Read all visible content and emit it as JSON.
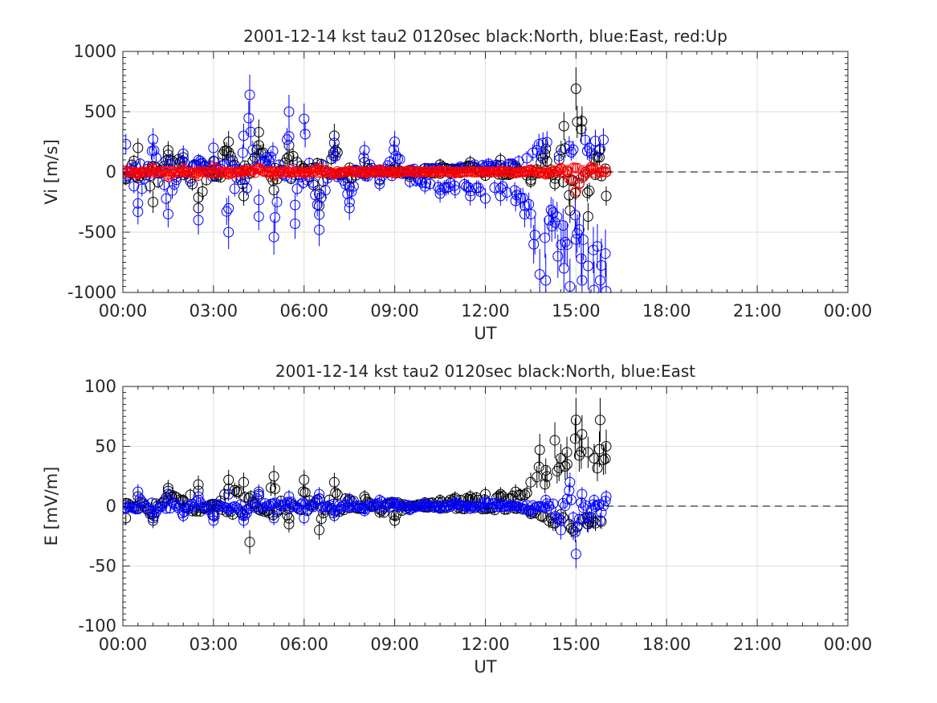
{
  "chart_data": [
    {
      "type": "scatter",
      "title": "2001-12-14 kst tau2 0120sec black:North, blue:East, red:Up",
      "xlabel": "UT",
      "ylabel": "Vi [m/s]",
      "xlim": [
        "00:00",
        "24:00"
      ],
      "ylim": [
        -1000,
        1000
      ],
      "xticks": [
        "00:00",
        "03:00",
        "06:00",
        "09:00",
        "12:00",
        "15:00",
        "18:00",
        "21:00",
        "00:00"
      ],
      "yticks": [
        "-1000",
        "-500",
        "0",
        "500",
        "1000"
      ],
      "grid": true,
      "reference_line": {
        "y": 0,
        "from_hour": 16.0,
        "to_hour": 24.0,
        "style": "dashed"
      },
      "marker": "open-circle-with-errorbar",
      "series": [
        {
          "name": "North",
          "color": "#000000",
          "x_hours": [
            0.1,
            0.5,
            1.0,
            1.5,
            2.0,
            2.5,
            3.0,
            3.5,
            4.0,
            4.5,
            5.0,
            5.5,
            6.0,
            6.5,
            7.0,
            7.5,
            8.0,
            8.5,
            9.0,
            9.5,
            10.0,
            10.5,
            11.0,
            11.5,
            12.0,
            12.5,
            13.0,
            13.5,
            14.0,
            14.3,
            14.6,
            14.8,
            15.0,
            15.2,
            15.4,
            15.6,
            15.8,
            16.0
          ],
          "y": [
            -60,
            200,
            -250,
            180,
            120,
            -300,
            90,
            250,
            -200,
            330,
            -150,
            220,
            30,
            -280,
            300,
            -120,
            80,
            -60,
            40,
            -40,
            30,
            60,
            20,
            80,
            -30,
            100,
            50,
            -80,
            190,
            -100,
            380,
            -320,
            690,
            420,
            -370,
            110,
            190,
            -200
          ]
        },
        {
          "name": "East",
          "color": "#0000ff",
          "x_hours": [
            0.1,
            0.5,
            1.0,
            1.5,
            2.0,
            2.5,
            3.0,
            3.5,
            4.0,
            4.2,
            4.5,
            5.0,
            5.5,
            5.7,
            6.0,
            6.5,
            7.0,
            7.5,
            8.0,
            8.5,
            9.0,
            9.5,
            10.0,
            10.5,
            11.0,
            11.5,
            12.0,
            12.5,
            13.0,
            13.3,
            13.6,
            13.8,
            14.0,
            14.2,
            14.4,
            14.6,
            14.8,
            15.0,
            15.2,
            15.4,
            15.6,
            15.8,
            16.0
          ],
          "y": [
            230,
            -330,
            270,
            -350,
            150,
            -400,
            200,
            -500,
            300,
            640,
            -370,
            -540,
            500,
            -430,
            440,
            -480,
            240,
            -300,
            180,
            -100,
            250,
            -80,
            -120,
            -180,
            -150,
            -200,
            -220,
            -200,
            -240,
            -350,
            -600,
            -850,
            -900,
            -450,
            -700,
            -800,
            -950,
            -560,
            -900,
            -780,
            -980,
            -900,
            -990
          ]
        },
        {
          "name": "Up",
          "color": "#ff0000",
          "x_hours": [
            0.1,
            0.5,
            1.0,
            1.5,
            2.0,
            2.5,
            3.0,
            3.5,
            4.0,
            4.5,
            5.0,
            5.5,
            6.0,
            6.5,
            7.0,
            7.5,
            8.0,
            8.5,
            9.0,
            9.5,
            10.0,
            10.5,
            11.0,
            11.5,
            12.0,
            12.5,
            13.0,
            13.5,
            14.0,
            14.5,
            15.0,
            15.5,
            16.0
          ],
          "y": [
            10,
            -20,
            30,
            -40,
            20,
            -30,
            40,
            -20,
            10,
            30,
            -30,
            20,
            -10,
            30,
            -20,
            10,
            -10,
            20,
            -10,
            10,
            0,
            10,
            -10,
            10,
            0,
            10,
            -10,
            20,
            -20,
            30,
            -160,
            40,
            0
          ]
        }
      ]
    },
    {
      "type": "scatter",
      "title": "2001-12-14 kst tau2 0120sec black:North, blue:East",
      "xlabel": "UT",
      "ylabel": "E [mV/m]",
      "xlim": [
        "00:00",
        "24:00"
      ],
      "ylim": [
        -100,
        100
      ],
      "xticks": [
        "00:00",
        "03:00",
        "06:00",
        "09:00",
        "12:00",
        "15:00",
        "18:00",
        "21:00",
        "00:00"
      ],
      "yticks": [
        "-100",
        "-50",
        "0",
        "50",
        "100"
      ],
      "grid": true,
      "reference_line": {
        "y": 0,
        "from_hour": 16.0,
        "to_hour": 24.0,
        "style": "dashed"
      },
      "marker": "open-circle-with-errorbar",
      "series": [
        {
          "name": "North",
          "color": "#000000",
          "x_hours": [
            0.1,
            0.5,
            1.0,
            1.5,
            2.0,
            2.5,
            3.0,
            3.5,
            4.0,
            4.2,
            4.5,
            5.0,
            5.5,
            6.0,
            6.5,
            7.0,
            7.5,
            8.0,
            8.5,
            9.0,
            9.5,
            10.0,
            10.5,
            11.0,
            11.5,
            12.0,
            12.5,
            13.0,
            13.5,
            13.8,
            14.0,
            14.3,
            14.5,
            14.7,
            15.0,
            15.2,
            15.4,
            15.6,
            15.8,
            16.0
          ],
          "y": [
            -10,
            8,
            -12,
            15,
            5,
            18,
            -8,
            22,
            20,
            -30,
            10,
            25,
            -15,
            22,
            -20,
            20,
            5,
            8,
            -5,
            -12,
            0,
            3,
            5,
            7,
            8,
            10,
            10,
            12,
            20,
            47,
            30,
            55,
            40,
            45,
            72,
            60,
            45,
            40,
            72,
            50
          ]
        },
        {
          "name": "East",
          "color": "#0000ff",
          "x_hours": [
            0.1,
            0.5,
            1.0,
            1.5,
            2.0,
            2.5,
            3.0,
            3.5,
            4.0,
            4.5,
            5.0,
            5.5,
            6.0,
            6.5,
            7.0,
            7.5,
            8.0,
            8.5,
            9.0,
            9.5,
            10.0,
            10.5,
            11.0,
            11.5,
            12.0,
            12.5,
            13.0,
            13.5,
            14.0,
            14.5,
            14.8,
            15.0,
            15.2,
            15.4,
            15.6,
            15.8,
            16.0
          ],
          "y": [
            -2,
            12,
            -10,
            10,
            -8,
            8,
            -12,
            10,
            -12,
            12,
            -10,
            8,
            -10,
            10,
            -8,
            6,
            -4,
            5,
            3,
            -3,
            2,
            -2,
            3,
            -2,
            4,
            2,
            0,
            -5,
            5,
            -20,
            20,
            -40,
            10,
            -15,
            5,
            -12,
            8
          ]
        }
      ]
    }
  ]
}
